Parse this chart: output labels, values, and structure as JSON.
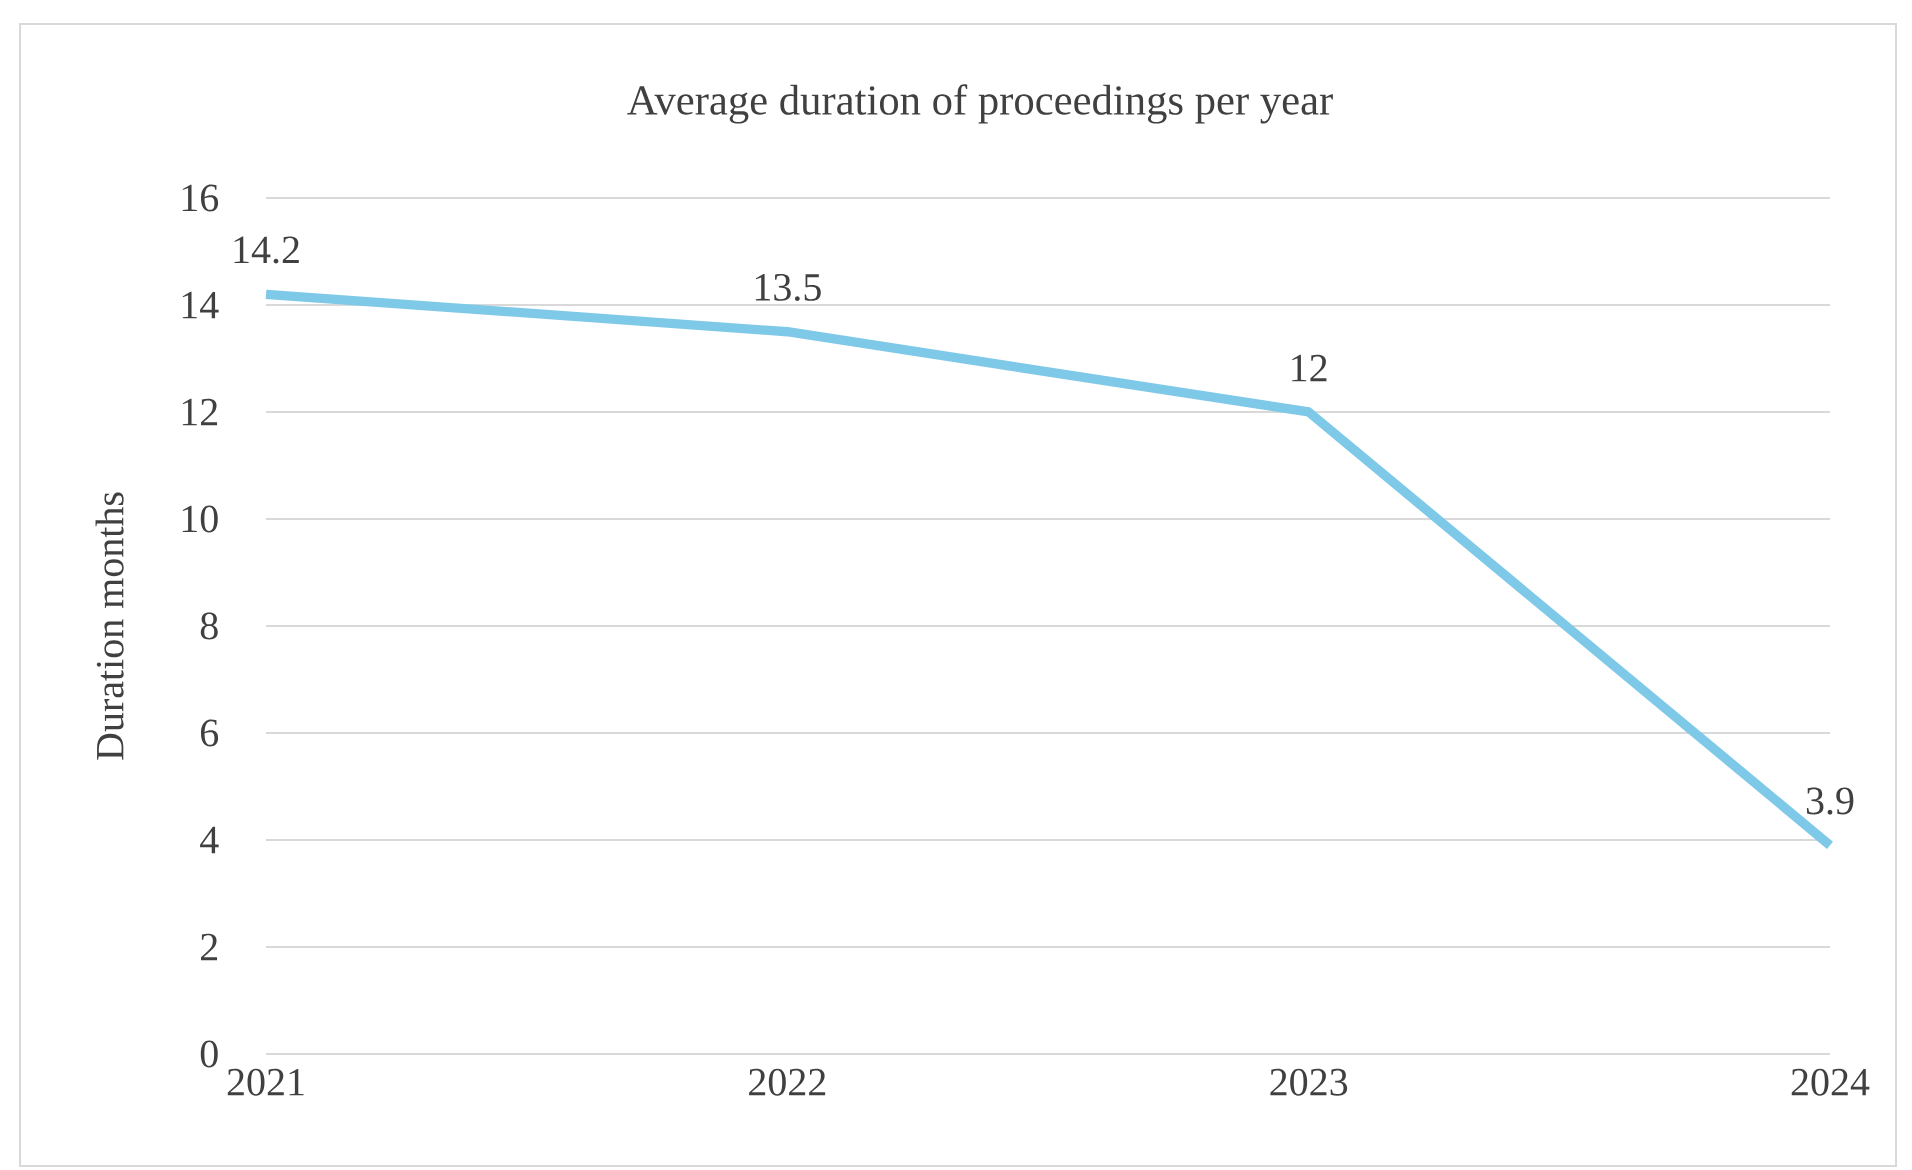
{
  "chart_data": {
    "type": "line",
    "title": "Average duration of proceedings per year",
    "ylabel": "Duration months",
    "categories": [
      "2021",
      "2022",
      "2023",
      "2024"
    ],
    "series": [
      {
        "color": "#7ec8e8",
        "values": [
          14.2,
          13.5,
          12,
          3.9
        ]
      }
    ],
    "ylim": [
      0,
      16
    ],
    "yticks": [
      0,
      2,
      4,
      6,
      8,
      10,
      12,
      14,
      16
    ],
    "grid": "y",
    "data_labels": true
  }
}
